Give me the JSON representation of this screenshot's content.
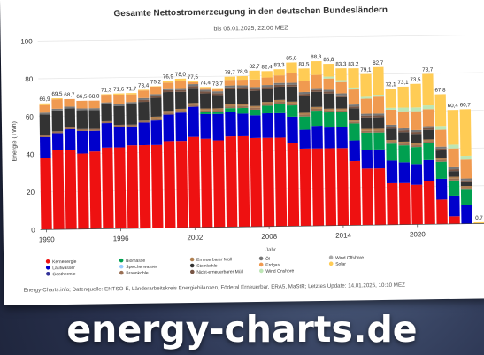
{
  "chart_data": {
    "type": "bar",
    "stacked": true,
    "title": "Gesamte Nettostromerzeugung in den deutschen Bundesländern",
    "subtitle": "bis 06.01.2025, 22:00 MEZ",
    "xlabel": "Jahr",
    "ylabel": "Energie (TWh)",
    "ylim": [
      0,
      100
    ],
    "yticks": [
      0,
      20,
      40,
      60,
      80,
      100
    ],
    "xtick_labels": [
      "1990",
      "1996",
      "2002",
      "2008",
      "2014",
      "2020"
    ],
    "grid": true,
    "legend_position": "bottom",
    "categories": [
      "1990",
      "1991",
      "1992",
      "1993",
      "1994",
      "1995",
      "1996",
      "1997",
      "1998",
      "1999",
      "2000",
      "2001",
      "2002",
      "2003",
      "2004",
      "2005",
      "2006",
      "2007",
      "2008",
      "2009",
      "2010",
      "2011",
      "2012",
      "2013",
      "2014",
      "2015",
      "2016",
      "2017",
      "2018",
      "2019",
      "2020",
      "2021",
      "2022",
      "2023",
      "2024",
      "2025"
    ],
    "totals": [
      "66,9",
      "69,5",
      "68,7",
      "66,5",
      "68,0",
      "71,3",
      "71,6",
      "71,7",
      "73,4",
      "75,2",
      "76,9",
      "78,0",
      "77,5",
      "74,4",
      "73,7",
      "78,7",
      "78,9",
      "82,7",
      "82,4",
      "83,3",
      "85,8",
      "83,5",
      "88,3",
      "85,8",
      "83,3",
      "83,2",
      "79,1",
      "82,7",
      "72,1",
      "73,1",
      "73,5",
      "78,7",
      "67,8",
      "60,4",
      "60,7",
      "0,7"
    ],
    "series": [
      {
        "name": "Kernenergie",
        "color": "#ee1111",
        "values": [
          38,
          42,
          42,
          40,
          41,
          43,
          43,
          44,
          44,
          44,
          46,
          46,
          48,
          47,
          46,
          48,
          48,
          47,
          47,
          47,
          44,
          41,
          41,
          41,
          41,
          34,
          30,
          30,
          22,
          22,
          21,
          23,
          13,
          4,
          0,
          0
        ]
      },
      {
        "name": "Laufwasser",
        "color": "#0000cc",
        "values": [
          11,
          9,
          11,
          12,
          11,
          13,
          11,
          10,
          12,
          13,
          14,
          15,
          16,
          13,
          14,
          13,
          12,
          12,
          13,
          13,
          14,
          10,
          12,
          11,
          11,
          11,
          10,
          10,
          12,
          11,
          11,
          11,
          11,
          11,
          10,
          0
        ]
      },
      {
        "name": "Geothermie",
        "color": "#333399",
        "values": [
          0,
          0,
          0,
          0,
          0,
          0,
          0,
          0,
          0,
          0,
          0,
          0,
          0,
          0,
          0,
          0,
          0,
          0,
          0,
          0,
          0,
          0,
          0,
          0,
          0,
          0,
          0,
          0,
          0,
          0,
          0,
          0,
          0,
          0,
          0,
          0
        ]
      },
      {
        "name": "Biomasse",
        "color": "#00a050",
        "values": [
          0,
          0,
          0,
          0,
          0,
          0,
          0,
          0,
          0,
          0,
          0,
          0,
          0,
          1,
          1,
          2,
          3,
          3,
          4,
          5,
          6,
          7,
          8,
          8,
          8,
          9,
          9,
          9,
          9,
          9,
          9,
          9,
          9,
          8,
          8,
          0
        ]
      },
      {
        "name": "Speicherwasser",
        "color": "#99ccff",
        "values": [
          0,
          0,
          0,
          0,
          0,
          0,
          0,
          0,
          0,
          0,
          0,
          0,
          0,
          0,
          0,
          0,
          0,
          0,
          0,
          0,
          0,
          0,
          0,
          0,
          0,
          0,
          0,
          0,
          0,
          0,
          0,
          0,
          0,
          0,
          0,
          0
        ]
      },
      {
        "name": "Braunkohle",
        "color": "#9a7055",
        "values": [
          1,
          1,
          1,
          1,
          1,
          1,
          1,
          1,
          1,
          1,
          1,
          1,
          1,
          1,
          1,
          1,
          1,
          1,
          1,
          1,
          1,
          1,
          1,
          1,
          1,
          1,
          1,
          1,
          1,
          1,
          1,
          1,
          1,
          1,
          1,
          0
        ]
      },
      {
        "name": "Erneuerbarer Müll",
        "color": "#b08050",
        "values": [
          0,
          0,
          0,
          0,
          0,
          0,
          0,
          0,
          0,
          1,
          1,
          1,
          1,
          1,
          1,
          1,
          1,
          1,
          1,
          1,
          1,
          1,
          1,
          1,
          1,
          1,
          1,
          1,
          1,
          1,
          1,
          1,
          1,
          1,
          1,
          0
        ]
      },
      {
        "name": "Steinkohle",
        "color": "#333333",
        "values": [
          11,
          11,
          10,
          10,
          10,
          9,
          10,
          11,
          10,
          10,
          10,
          9,
          8,
          8,
          7,
          8,
          8,
          8,
          7,
          7,
          8,
          9,
          8,
          8,
          6,
          6,
          6,
          6,
          6,
          5,
          5,
          5,
          4,
          3,
          2,
          0
        ]
      },
      {
        "name": "Nicht-erneuerbarer Müll",
        "color": "#775544",
        "values": [
          0,
          0,
          0,
          0,
          0,
          0,
          0,
          0,
          1,
          1,
          1,
          1,
          1,
          1,
          1,
          1,
          1,
          1,
          1,
          1,
          1,
          1,
          1,
          1,
          1,
          1,
          1,
          1,
          1,
          1,
          1,
          1,
          1,
          1,
          1,
          0
        ]
      },
      {
        "name": "Öl",
        "color": "#777777",
        "values": [
          1,
          1,
          1,
          1,
          1,
          1,
          1,
          1,
          1,
          1,
          1,
          1,
          1,
          1,
          1,
          1,
          1,
          1,
          1,
          1,
          1,
          1,
          1,
          1,
          1,
          1,
          1,
          1,
          1,
          1,
          1,
          1,
          1,
          1,
          1,
          0
        ]
      },
      {
        "name": "Erdgas",
        "color": "#f09a50",
        "values": [
          4,
          5,
          4,
          4,
          4,
          4,
          5,
          4,
          4,
          4,
          3,
          4,
          1,
          1,
          1,
          3,
          3,
          4,
          4,
          4,
          5,
          6,
          7,
          6,
          6,
          8,
          8,
          9,
          8,
          9,
          10,
          9,
          9,
          10,
          10,
          0
        ]
      },
      {
        "name": "Wind Onshore",
        "color": "#bde6b5",
        "values": [
          0,
          0,
          0,
          0,
          0,
          0,
          0,
          0,
          0,
          0,
          0,
          0,
          0,
          0,
          0,
          0,
          0,
          0,
          0,
          0,
          0,
          0,
          0,
          1,
          1,
          1,
          1,
          1,
          1,
          2,
          2,
          2,
          2,
          2,
          2,
          0
        ]
      },
      {
        "name": "Wind Offshore",
        "color": "#aaaaaa",
        "values": [
          0,
          0,
          0,
          0,
          0,
          0,
          0,
          0,
          0,
          0,
          0,
          0,
          0,
          0,
          0,
          0,
          0,
          0,
          0,
          0,
          0,
          0,
          0,
          0,
          0,
          0,
          0,
          0,
          0,
          0,
          0,
          0,
          0,
          0,
          0,
          0
        ]
      },
      {
        "name": "Solar",
        "color": "#ffcc55",
        "values": [
          0.9,
          0.5,
          -0.3,
          -1.5,
          0,
          0.3,
          0.6,
          0.7,
          0.4,
          0.2,
          0.9,
          1,
          0.5,
          0.4,
          0.7,
          1.7,
          1.9,
          4.7,
          3.4,
          3.3,
          5.8,
          6.5,
          7.3,
          6.8,
          6.3,
          10.2,
          12.1,
          14.7,
          10.1,
          11.1,
          12.5,
          16.7,
          16.8,
          18.4,
          24.7,
          0.7
        ]
      }
    ]
  },
  "source": "Energy-Charts.info; Datenquelle: ENTSO-E, Länderarbeitskreis Energiebilanzen, Föderal Erneuerbar, ERA5, MaStR; Letztes Update: 14.01.2025, 10:10 MEZ",
  "brand_text": "energy-charts.de"
}
